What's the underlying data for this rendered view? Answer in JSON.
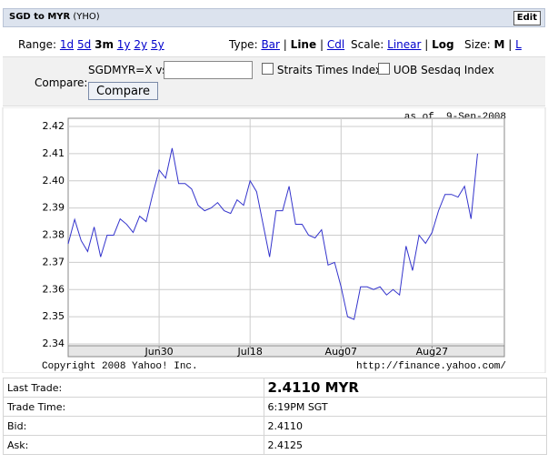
{
  "header": {
    "title": "SGD to MYR",
    "source": "(YHO)",
    "edit": "Edit"
  },
  "controls": {
    "separator": "|",
    "range_label": "Range:",
    "ranges": [
      "1d",
      "5d",
      "3m",
      "1y",
      "2y",
      "5y"
    ],
    "type_label": "Type:",
    "types": [
      "Bar",
      "Line",
      "Cdl"
    ],
    "scale_label": "Scale:",
    "scales": [
      "Linear",
      "Log"
    ],
    "size_label": "Size:",
    "sizes": [
      "M",
      "L"
    ],
    "compare_label": "Compare:",
    "compare_prefix": "SGDMYR=X vs",
    "compare_options": [
      "Straits Times Index",
      "UOB Sesdaq Index"
    ],
    "compare_button": "Compare"
  },
  "chart_data": {
    "type": "line",
    "as_of": "as of  9-Sep-2008",
    "copyright": "Copyright 2008 Yahoo! Inc.",
    "url": "http://finance.yahoo.com/",
    "categories": [
      null,
      null,
      null,
      null,
      null,
      null,
      null,
      null,
      null,
      null,
      null,
      null,
      null,
      null,
      "Jun30",
      null,
      null,
      null,
      null,
      null,
      null,
      null,
      null,
      null,
      null,
      null,
      null,
      null,
      "Jul18",
      null,
      null,
      null,
      null,
      null,
      null,
      null,
      null,
      null,
      null,
      null,
      null,
      null,
      "Aug07",
      null,
      null,
      null,
      null,
      null,
      null,
      null,
      null,
      null,
      null,
      null,
      null,
      null,
      "Aug27",
      null,
      null,
      null,
      null,
      null,
      null,
      null
    ],
    "series": [
      {
        "name": "SGDMYR=X",
        "color": "#3333cc",
        "values": [
          2.3768,
          2.3858,
          2.378,
          2.374,
          2.383,
          2.372,
          2.38,
          2.38,
          2.386,
          2.384,
          2.381,
          2.387,
          2.385,
          2.395,
          2.404,
          2.401,
          2.412,
          2.399,
          2.399,
          2.397,
          2.391,
          2.389,
          2.39,
          2.392,
          2.389,
          2.388,
          2.393,
          2.391,
          2.4,
          2.396,
          2.384,
          2.372,
          2.389,
          2.389,
          2.398,
          2.384,
          2.384,
          2.38,
          2.379,
          2.382,
          2.369,
          2.37,
          2.361,
          2.35,
          2.349,
          2.361,
          2.361,
          2.36,
          2.361,
          2.358,
          2.36,
          2.358,
          2.376,
          2.367,
          2.38,
          2.377,
          2.381,
          2.389,
          2.395,
          2.395,
          2.394,
          2.398,
          2.386,
          2.41
        ]
      }
    ],
    "ylim": [
      2.34,
      2.42
    ],
    "yticks": [
      2.34,
      2.35,
      2.36,
      2.37,
      2.38,
      2.39,
      {
        "value": 2.4,
        "label": "2.40"
      },
      2.41,
      2.42
    ],
    "grid": true
  },
  "table": {
    "rows": [
      [
        "Last Trade:",
        "2.4110 MYR"
      ],
      [
        "Trade Time:",
        "6:19PM SGT"
      ],
      [
        "Bid:",
        "2.4110"
      ],
      [
        "Ask:",
        "2.4125"
      ]
    ]
  }
}
